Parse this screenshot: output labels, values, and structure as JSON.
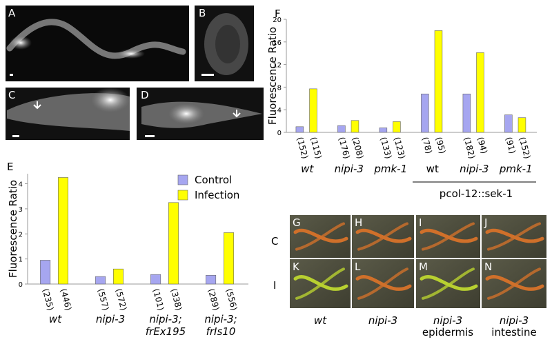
{
  "panels": {
    "image_letters": [
      "A",
      "B",
      "C",
      "D",
      "G",
      "H",
      "I",
      "J",
      "K",
      "L",
      "M",
      "N"
    ],
    "row_labels": [
      "C",
      "I"
    ],
    "column_labels": [
      [
        "wt"
      ],
      [
        "nipi-3"
      ],
      [
        "nipi-3",
        "epidermis"
      ],
      [
        "nipi-3",
        "intestine"
      ]
    ]
  },
  "chart_data": [
    {
      "type": "bar",
      "panel": "F",
      "y_label": "Fluorescence Ratio",
      "categories": [
        [
          "wt"
        ],
        [
          "nipi-3"
        ],
        [
          "pmk-1"
        ],
        [
          "wt"
        ],
        [
          "nipi-3"
        ],
        [
          "pmk-1"
        ]
      ],
      "group_label": "pcol-12::sek-1",
      "series": [
        {
          "color": "#a6a6f0",
          "values": [
            1.0,
            1.2,
            0.8,
            6.8,
            6.8,
            3.1
          ],
          "n_labels": [
            "(152)",
            "(176)",
            "(133)",
            "(78)",
            "(182)",
            "(91)"
          ]
        },
        {
          "color": "#ffff00",
          "values": [
            7.7,
            2.1,
            1.9,
            18.0,
            14.1,
            2.6
          ],
          "n_labels": [
            "(115)",
            "(208)",
            "(123)",
            "(95)",
            "(94)",
            "(152)"
          ]
        }
      ],
      "ylim": [
        0,
        20
      ],
      "yticks": [
        0,
        4,
        8,
        12,
        16,
        20
      ]
    },
    {
      "type": "bar",
      "panel": "E",
      "y_label": "Fluorescence Ratio",
      "categories": [
        [
          "wt"
        ],
        [
          "nipi-3"
        ],
        [
          "nipi-3;",
          "frEx195"
        ],
        [
          "nipi-3;",
          "frIs10"
        ]
      ],
      "series": [
        {
          "name": "Control",
          "color": "#a6a6f0",
          "values": [
            0.95,
            0.3,
            0.38,
            0.35
          ],
          "n_labels": [
            "(235)",
            "(557)",
            "(101)",
            "(289)"
          ]
        },
        {
          "name": "Infection",
          "color": "#ffff00",
          "values": [
            4.25,
            0.6,
            3.25,
            2.05
          ],
          "n_labels": [
            "(446)",
            "(572)",
            "(338)",
            "(556)"
          ]
        }
      ],
      "ylim": [
        0,
        4.4
      ],
      "yticks": [
        0,
        1,
        2,
        3,
        4
      ],
      "legend": "upper-right"
    }
  ]
}
